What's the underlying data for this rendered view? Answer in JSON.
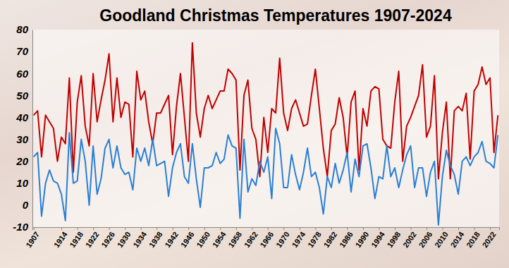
{
  "chart_data": {
    "type": "line",
    "title": "Goodland Christmas Temperatures 1907-2024",
    "categories": [
      "1907",
      null,
      null,
      null,
      null,
      null,
      null,
      "1914",
      null,
      null,
      null,
      "1918",
      null,
      null,
      null,
      "1922",
      null,
      null,
      null,
      "1926",
      null,
      null,
      null,
      "1930",
      null,
      null,
      null,
      "1934",
      null,
      null,
      null,
      "1938",
      null,
      null,
      null,
      "1942",
      null,
      null,
      null,
      "1946",
      null,
      null,
      null,
      "1950",
      null,
      null,
      null,
      "1954",
      null,
      null,
      null,
      "1958",
      null,
      null,
      null,
      "1962",
      null,
      null,
      null,
      "1966",
      null,
      null,
      null,
      "1970",
      null,
      null,
      null,
      "1974",
      null,
      null,
      null,
      "1978",
      null,
      null,
      null,
      "1982",
      null,
      null,
      null,
      "1986",
      null,
      null,
      null,
      "1990",
      null,
      null,
      null,
      "1994",
      null,
      null,
      null,
      "1998",
      null,
      null,
      null,
      "2002",
      null,
      null,
      null,
      "2006",
      null,
      null,
      null,
      "2010",
      null,
      null,
      null,
      "2014",
      null,
      null,
      null,
      "2018",
      null,
      null,
      null,
      "2022",
      null,
      null
    ],
    "series": [
      {
        "color": "#c00000",
        "values": [
          41,
          43,
          22,
          41,
          38,
          35,
          20,
          31,
          28,
          58,
          15,
          47,
          59,
          36,
          27,
          60,
          38,
          48,
          57,
          69,
          38,
          58,
          40,
          47,
          46,
          22,
          61,
          48,
          52,
          38,
          28,
          42,
          42,
          46,
          50,
          23,
          45,
          60,
          40,
          20,
          74,
          42,
          31,
          44,
          50,
          44,
          48,
          52,
          52,
          62,
          60,
          57,
          16,
          50,
          57,
          35,
          30,
          13,
          40,
          24,
          44,
          42,
          67,
          42,
          34,
          44,
          48,
          42,
          36,
          37,
          50,
          62,
          44,
          26,
          13,
          34,
          37,
          49,
          40,
          22,
          47,
          52,
          16,
          44,
          36,
          52,
          54,
          53,
          30,
          27,
          26,
          47,
          61,
          20,
          36,
          40,
          45,
          50,
          64,
          31,
          36,
          59,
          12,
          33,
          47,
          12,
          43,
          45,
          43,
          51,
          21,
          52,
          55,
          63,
          55,
          58,
          24,
          41
        ]
      },
      {
        "color": "#2a7fd4",
        "values": [
          22,
          24,
          -5,
          10,
          16,
          11,
          10,
          5,
          -7,
          33,
          10,
          11,
          30,
          20,
          0,
          27,
          5,
          12,
          26,
          30,
          17,
          27,
          17,
          14,
          15,
          7,
          26,
          20,
          26,
          18,
          30,
          18,
          19,
          20,
          4,
          17,
          24,
          28,
          13,
          10,
          28,
          12,
          -1,
          17,
          17,
          18,
          24,
          19,
          21,
          32,
          27,
          26,
          -6,
          30,
          6,
          12,
          9,
          20,
          15,
          22,
          3,
          35,
          28,
          8,
          8,
          23,
          14,
          7,
          15,
          26,
          13,
          15,
          8,
          -4,
          13,
          8,
          19,
          10,
          16,
          24,
          6,
          21,
          13,
          27,
          28,
          17,
          3,
          13,
          12,
          27,
          13,
          17,
          8,
          16,
          23,
          27,
          8,
          17,
          17,
          4,
          15,
          20,
          -9,
          13,
          25,
          18,
          14,
          5,
          20,
          22,
          18,
          22,
          24,
          29,
          20,
          19,
          17,
          32
        ]
      }
    ],
    "ylim": [
      -10,
      80
    ],
    "yticks": [
      -10,
      0,
      10,
      20,
      30,
      40,
      50,
      60,
      70,
      80
    ],
    "grid": false
  }
}
